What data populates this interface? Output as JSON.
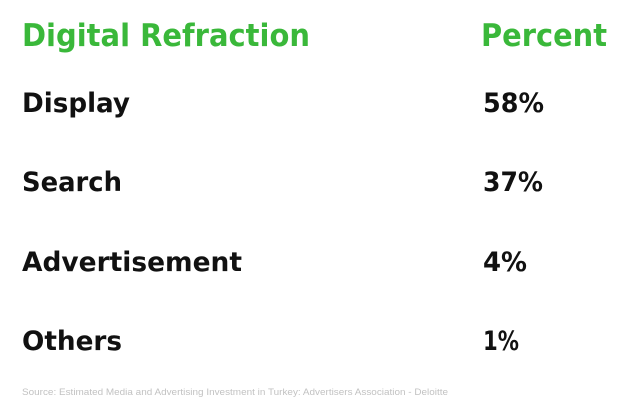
{
  "colors": {
    "header": "#3ab83a",
    "text": "#111111",
    "source": "#c2c2c2",
    "background": "#ffffff"
  },
  "chart_data": {
    "type": "table",
    "columns": [
      "Digital Refraction",
      "Percent"
    ],
    "rows": [
      {
        "category": "Display",
        "percent": "58%",
        "value": 58
      },
      {
        "category": "Search",
        "percent": "37%",
        "value": 37
      },
      {
        "category": "Advertisement",
        "percent": "4%",
        "value": 4
      },
      {
        "category": "Others",
        "percent": "1%",
        "value": 1
      }
    ],
    "source": "Source: Estimated Media and Advertising Investment in Turkey: Advertisers Association - Deloitte"
  }
}
